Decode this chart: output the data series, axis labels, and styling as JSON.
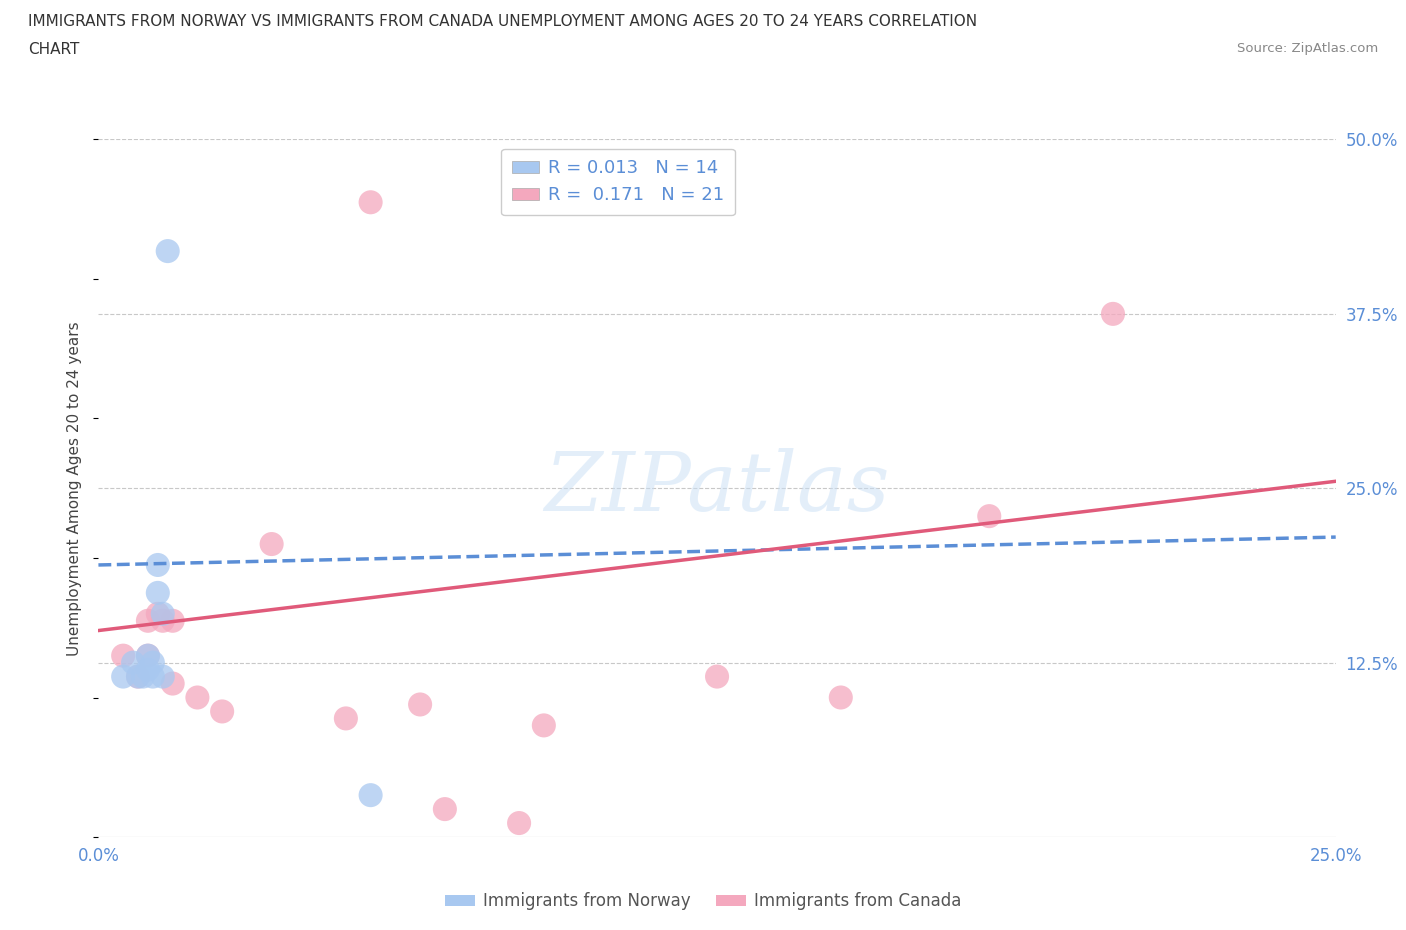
{
  "title_line1": "IMMIGRANTS FROM NORWAY VS IMMIGRANTS FROM CANADA UNEMPLOYMENT AMONG AGES 20 TO 24 YEARS CORRELATION",
  "title_line2": "CHART",
  "source_text": "Source: ZipAtlas.com",
  "ylabel": "Unemployment Among Ages 20 to 24 years",
  "xlim": [
    0.0,
    0.25
  ],
  "ylim": [
    0.0,
    0.5
  ],
  "xticks": [
    0.0,
    0.05,
    0.1,
    0.15,
    0.2,
    0.25
  ],
  "xtick_labels": [
    "0.0%",
    "",
    "",
    "",
    "",
    "25.0%"
  ],
  "ytick_labels_right": [
    "12.5%",
    "25.0%",
    "37.5%",
    "50.0%"
  ],
  "yticks_right": [
    0.125,
    0.25,
    0.375,
    0.5
  ],
  "norway_color": "#a8c8f0",
  "canada_color": "#f4a8be",
  "norway_line_color": "#5b8ed6",
  "canada_line_color": "#e05a7a",
  "norway_R": 0.013,
  "norway_N": 14,
  "canada_R": 0.171,
  "canada_N": 21,
  "norway_x": [
    0.005,
    0.007,
    0.008,
    0.009,
    0.01,
    0.01,
    0.011,
    0.011,
    0.012,
    0.012,
    0.013,
    0.013,
    0.014,
    0.055
  ],
  "norway_y": [
    0.115,
    0.125,
    0.115,
    0.115,
    0.12,
    0.13,
    0.115,
    0.125,
    0.175,
    0.195,
    0.115,
    0.16,
    0.42,
    0.03
  ],
  "canada_x": [
    0.005,
    0.008,
    0.01,
    0.01,
    0.012,
    0.013,
    0.015,
    0.015,
    0.02,
    0.025,
    0.035,
    0.05,
    0.055,
    0.065,
    0.07,
    0.085,
    0.09,
    0.125,
    0.15,
    0.18,
    0.205
  ],
  "canada_y": [
    0.13,
    0.115,
    0.13,
    0.155,
    0.16,
    0.155,
    0.11,
    0.155,
    0.1,
    0.09,
    0.21,
    0.085,
    0.455,
    0.095,
    0.02,
    0.01,
    0.08,
    0.115,
    0.1,
    0.23,
    0.375
  ],
  "norway_trend_x": [
    0.0,
    0.25
  ],
  "norway_trend_y": [
    0.195,
    0.215
  ],
  "canada_trend_x": [
    0.0,
    0.25
  ],
  "canada_trend_y": [
    0.148,
    0.255
  ],
  "watermark_text": "ZIPatlas",
  "legend_label1": "Immigrants from Norway",
  "legend_label2": "Immigrants from Canada",
  "background_color": "#ffffff",
  "grid_color": "#c8c8c8"
}
